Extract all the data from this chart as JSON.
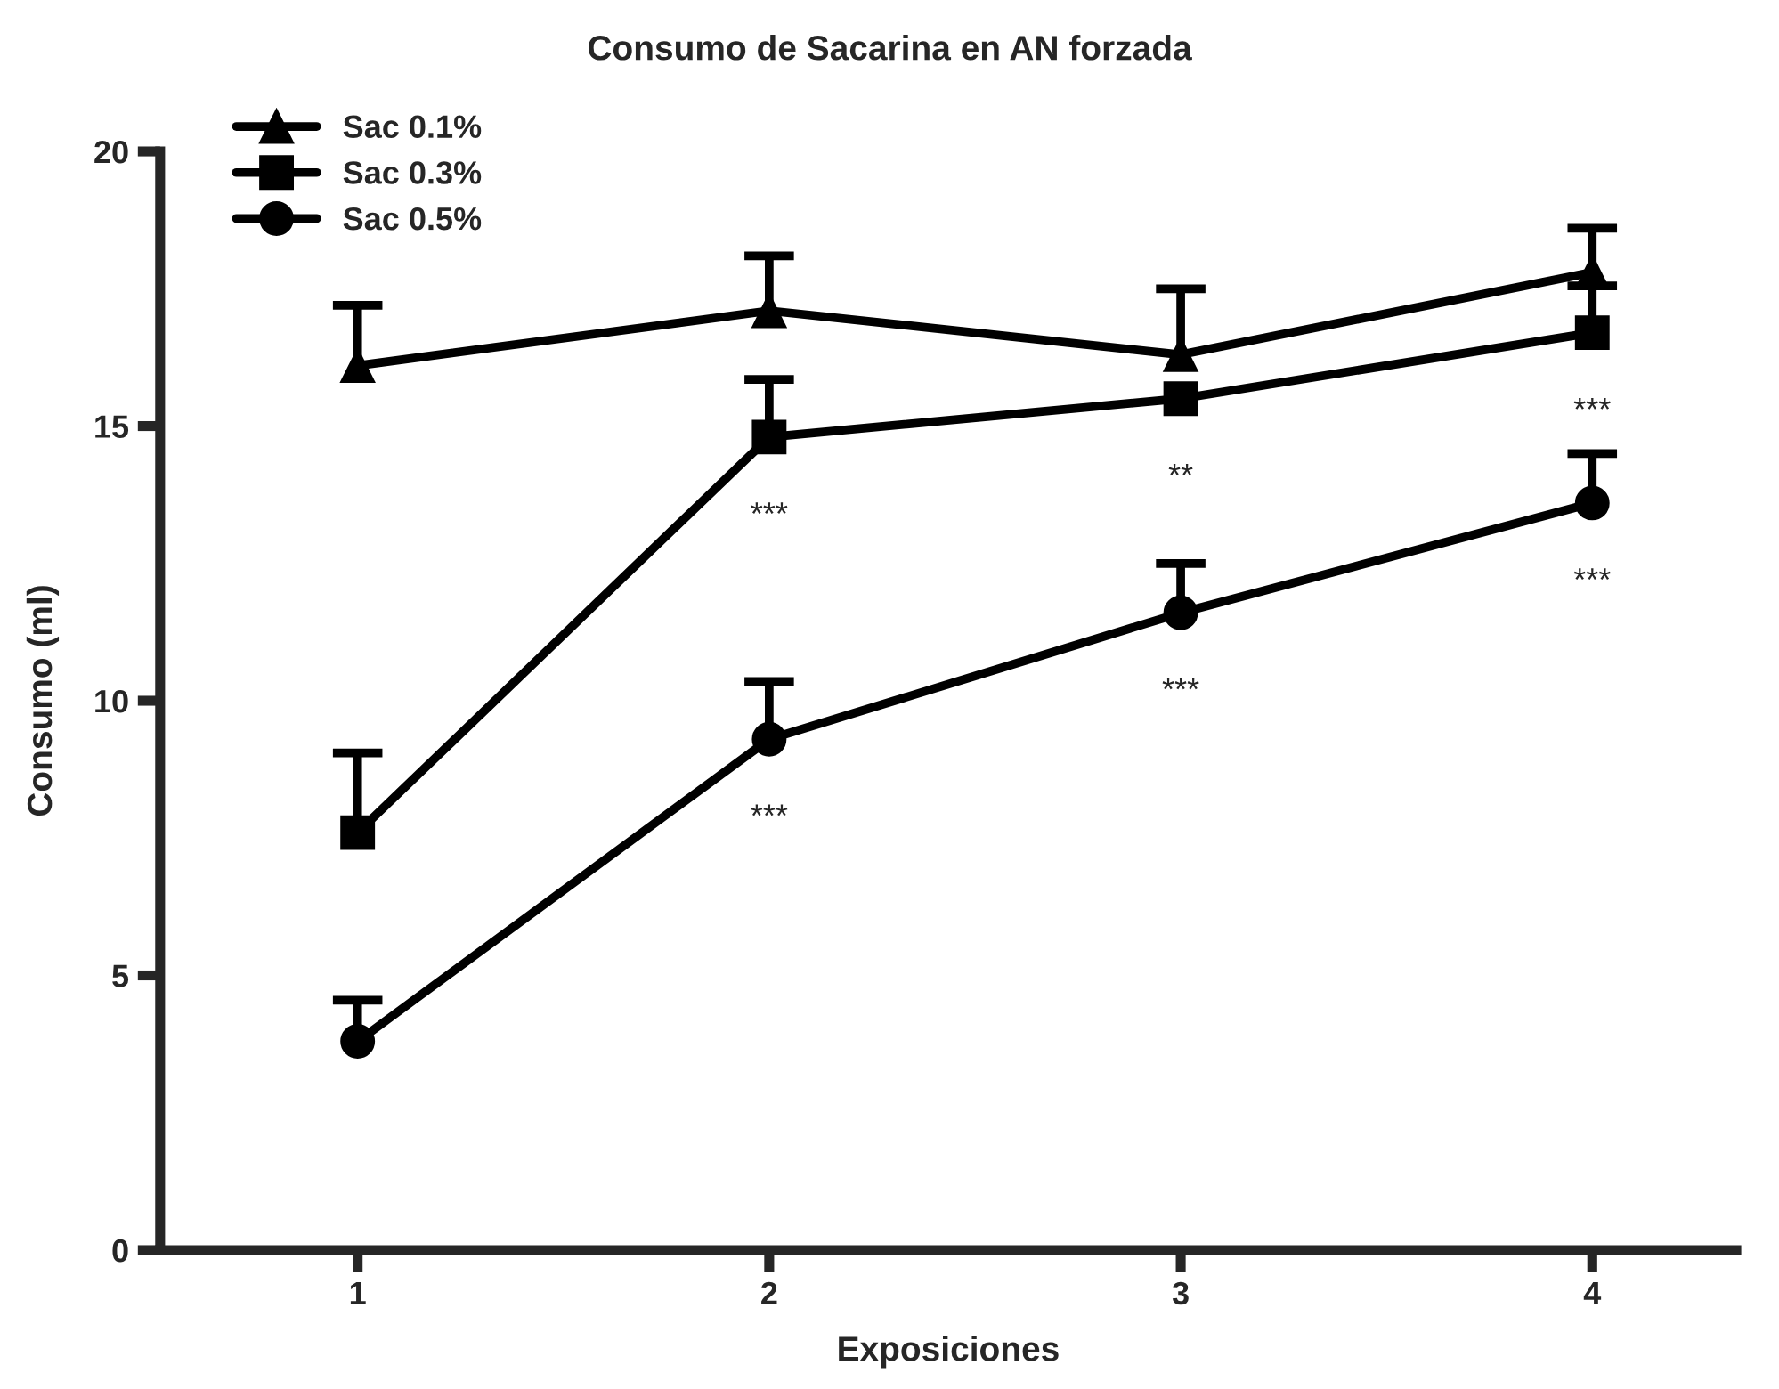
{
  "chart_data": {
    "type": "line",
    "title": "Consumo de Sacarina en AN forzada",
    "xlabel": "Exposiciones",
    "ylabel": "Consumo (ml)",
    "x": [
      1,
      2,
      3,
      4
    ],
    "xlim": [
      0.52,
      4.35
    ],
    "xticks": [
      1,
      2,
      3,
      4
    ],
    "ylim": [
      0,
      20
    ],
    "yticks": [
      0,
      5,
      10,
      15,
      20
    ],
    "grid": false,
    "legend": "top left",
    "line_style": "solid",
    "series": [
      {
        "name": "Sac 0.1%",
        "color": "#000000",
        "marker": "triangle",
        "values": [
          16.1,
          17.1,
          16.3,
          17.8
        ],
        "errors": [
          [
            16.1,
            17.2
          ],
          [
            17.1,
            18.1
          ],
          [
            16.3,
            17.5
          ],
          [
            17.8,
            18.6
          ]
        ]
      },
      {
        "name": "Sac 0.3%",
        "color": "#000000",
        "marker": "square",
        "values": [
          7.6,
          14.8,
          15.5,
          16.7
        ],
        "errors": [
          [
            7.6,
            9.05
          ],
          [
            14.8,
            15.85
          ],
          null,
          [
            16.7,
            17.55
          ]
        ]
      },
      {
        "name": "Sac 0.5%",
        "color": "#000000",
        "marker": "circle",
        "values": [
          3.8,
          9.3,
          11.6,
          13.6
        ],
        "errors": [
          [
            3.8,
            4.55
          ],
          [
            9.3,
            10.35
          ],
          [
            11.6,
            12.5
          ],
          [
            13.6,
            14.5
          ]
        ]
      }
    ],
    "annotations": [
      {
        "text": "***",
        "x": 2,
        "y": 14.8
      },
      {
        "text": "**",
        "x": 3,
        "y": 15.5
      },
      {
        "text": "***",
        "x": 4,
        "y": 16.7
      },
      {
        "text": "***",
        "x": 2,
        "y": 9.3
      },
      {
        "text": "***",
        "x": 3,
        "y": 11.6
      },
      {
        "text": "***",
        "x": 4,
        "y": 13.6
      }
    ]
  }
}
